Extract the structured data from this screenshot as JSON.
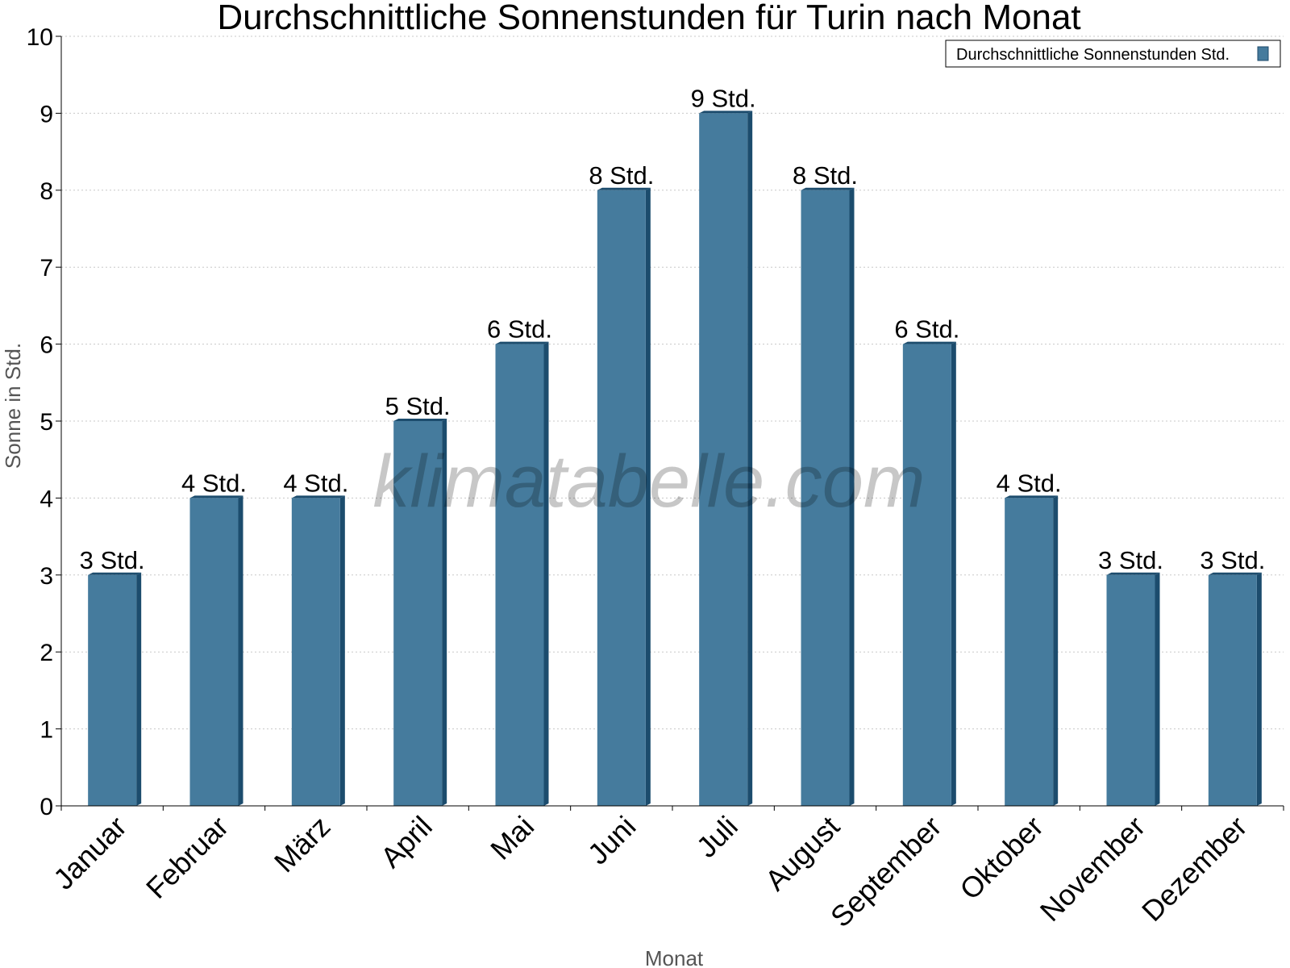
{
  "chart_data": {
    "type": "bar",
    "title": "Durchschnittliche Sonnenstunden für Turin nach Monat",
    "xlabel": "Monat",
    "ylabel": "Sonne in Std.",
    "ylim": [
      0,
      10
    ],
    "yticks": [
      "0",
      "1",
      "2",
      "3",
      "4",
      "5",
      "6",
      "7",
      "8",
      "9",
      "10"
    ],
    "grid": true,
    "legend_position": "top-right",
    "categories": [
      "Januar",
      "Februar",
      "März",
      "April",
      "Mai",
      "Juni",
      "Juli",
      "August",
      "September",
      "Oktober",
      "November",
      "Dezember"
    ],
    "series": [
      {
        "name": "Durchschnittliche Sonnenstunden Std.",
        "color": "#457b9d",
        "values": [
          3,
          4,
          4,
          5,
          6,
          8,
          9,
          8,
          6,
          4,
          3,
          3
        ],
        "labels": [
          "3 Std.",
          "4 Std.",
          "4 Std.",
          "5 Std.",
          "6 Std.",
          "8 Std.",
          "9 Std.",
          "8 Std.",
          "6 Std.",
          "4 Std.",
          "3 Std.",
          "3 Std."
        ]
      }
    ]
  },
  "watermark": "klimatabelle.com"
}
